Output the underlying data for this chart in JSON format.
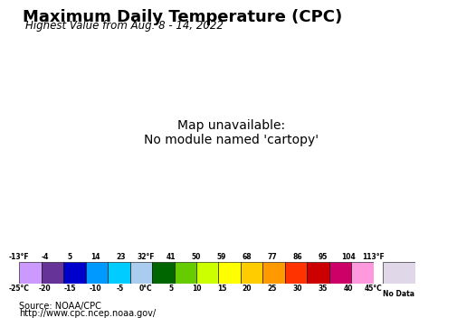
{
  "title": "Maximum Daily Temperature (CPC)",
  "subtitle": "Highest Value from Aug. 8 - 14, 2022",
  "source_line1": "Source: NOAA/CPC",
  "source_line2": "http://www.cpc.ncep.noaa.gov/",
  "colorbar_fahrenheit_labels": [
    "-13°F",
    "-4",
    "5",
    "14",
    "23",
    "32°F",
    "41",
    "50",
    "59",
    "68",
    "77",
    "86",
    "95",
    "104",
    "113°F"
  ],
  "colorbar_celsius_labels": [
    "-25°C",
    "-20",
    "-15",
    "-10",
    "-5",
    "0°C",
    "5",
    "10",
    "15",
    "20",
    "25",
    "30",
    "35",
    "40",
    "45°C"
  ],
  "colorbar_colors": [
    "#cc99ff",
    "#663399",
    "#0000cc",
    "#0099ff",
    "#00ccff",
    "#aaccee",
    "#006600",
    "#66cc00",
    "#ccff00",
    "#ffff00",
    "#ffcc00",
    "#ff9900",
    "#ff3300",
    "#cc0000",
    "#cc0066",
    "#ff99dd"
  ],
  "no_data_color": "#e0d8e8",
  "ocean_color": "#aad4ee",
  "background_color": "#aad4ee",
  "title_fontsize": 13,
  "subtitle_fontsize": 8.5,
  "source_fontsize": 7,
  "map_extent": [
    -125,
    -66.5,
    24.0,
    49.5
  ]
}
